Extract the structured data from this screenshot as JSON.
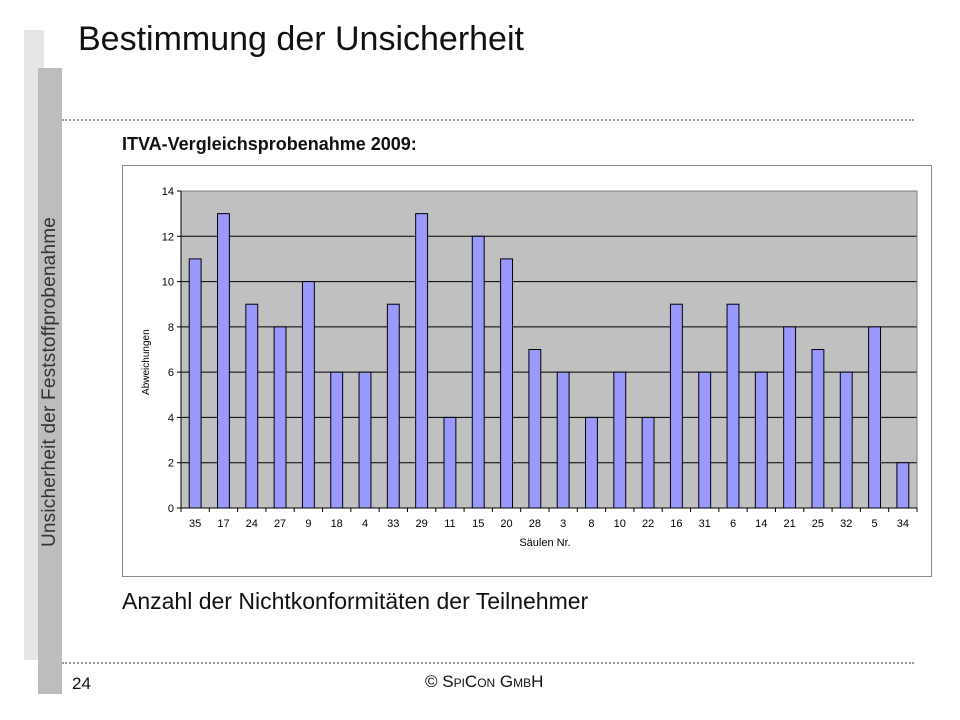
{
  "slide": {
    "title": "Bestimmung der Unsicherheit",
    "side_title": "Unsicherheit der Feststoffprobenahme",
    "chart_heading": "ITVA-Vergleichsprobenahme 2009:",
    "caption": "Anzahl der Nichtkonformitäten der Teilnehmer",
    "page_number": "24",
    "copyright": "© SpiCon GmbH"
  },
  "chart_data": {
    "type": "bar",
    "title": "",
    "xlabel": "Säulen Nr.",
    "ylabel": "Abweichungen",
    "ylim": [
      0,
      14
    ],
    "yticks": [
      0,
      2,
      4,
      6,
      8,
      10,
      12,
      14
    ],
    "grid": true,
    "legend": "none",
    "bar_color": "#9999ff",
    "plot_background": "#c0c0c0",
    "categories": [
      "35",
      "17",
      "24",
      "27",
      "9",
      "18",
      "4",
      "33",
      "29",
      "11",
      "15",
      "20",
      "28",
      "3",
      "8",
      "10",
      "22",
      "16",
      "31",
      "6",
      "14",
      "21",
      "25",
      "32",
      "5",
      "34"
    ],
    "values": [
      11,
      13,
      9,
      8,
      10,
      6,
      6,
      9,
      13,
      4,
      12,
      11,
      7,
      6,
      4,
      6,
      4,
      9,
      6,
      9,
      6,
      8,
      7,
      6,
      8,
      2
    ]
  }
}
